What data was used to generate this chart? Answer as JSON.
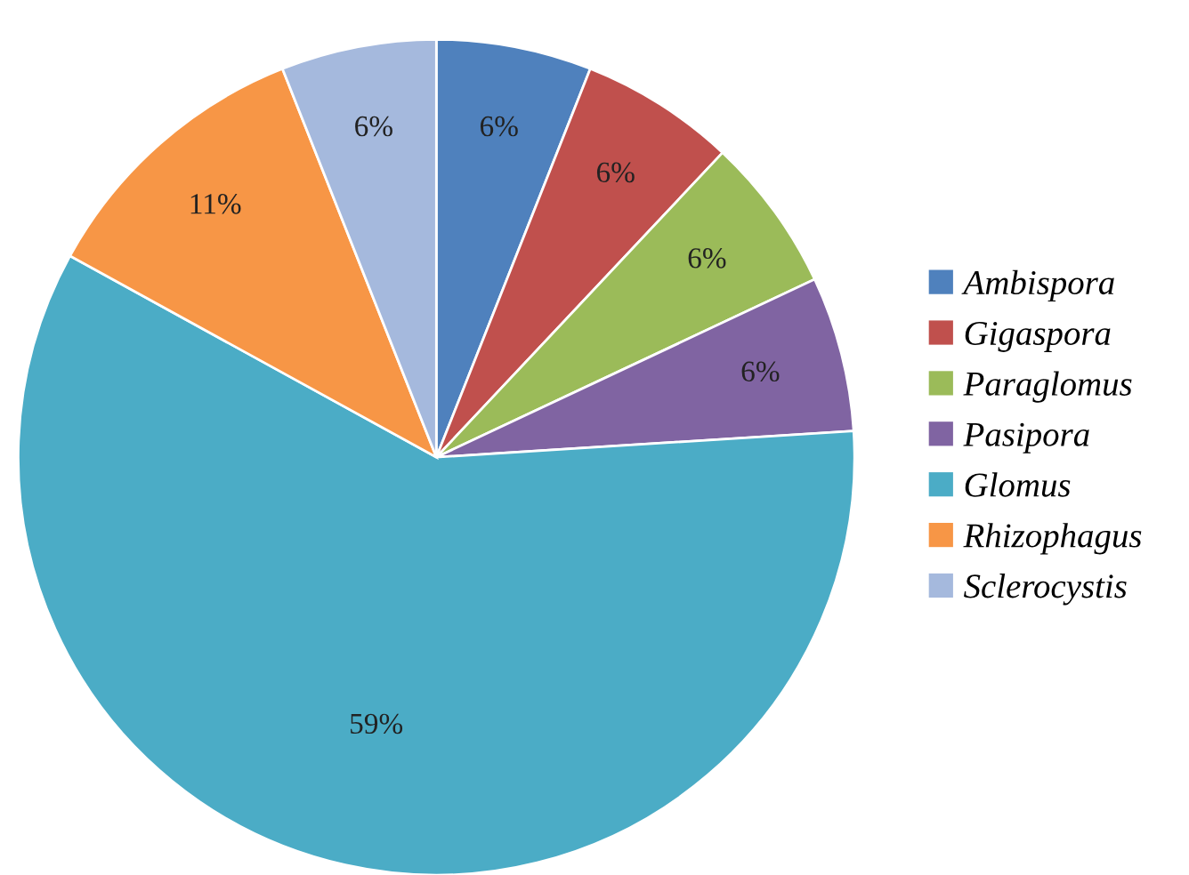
{
  "chart_data": {
    "type": "pie",
    "categories": [
      "Ambispora",
      "Gigaspora",
      "Paraglomus",
      "Pasipora",
      "Glomus",
      "Rhizophagus",
      "Sclerocystis"
    ],
    "values": [
      6,
      6,
      6,
      6,
      59,
      11,
      6
    ],
    "colors": [
      "#4f81bd",
      "#c0504d",
      "#9bbb59",
      "#8064a2",
      "#4bacc6",
      "#f79646",
      "#a5b9dd"
    ],
    "value_labels": [
      "6%",
      "6%",
      "6%",
      "6%",
      "59%",
      "11%",
      "6%"
    ],
    "legend": "right"
  }
}
